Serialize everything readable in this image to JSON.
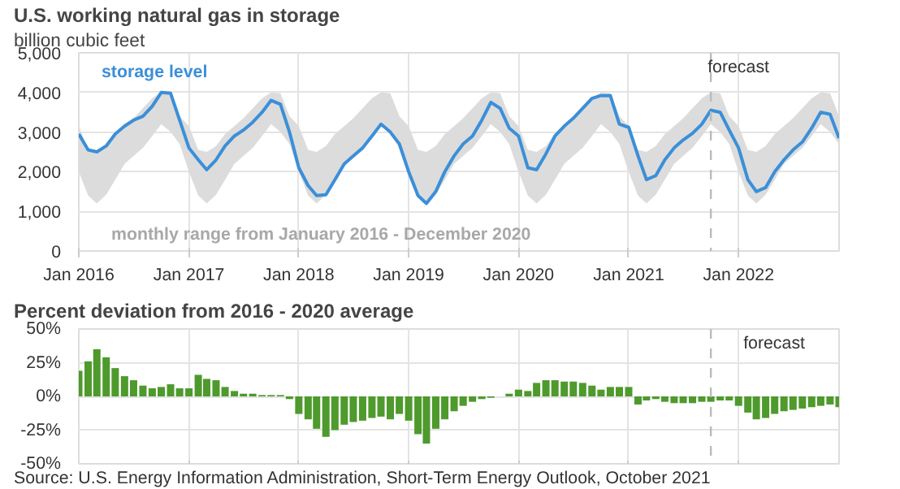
{
  "chart_data": [
    {
      "type": "line",
      "title": "U.S. working natural gas in storage",
      "subtitle": "billion cubic feet",
      "x": [
        "2016-01",
        "2016-02",
        "2016-03",
        "2016-04",
        "2016-05",
        "2016-06",
        "2016-07",
        "2016-08",
        "2016-09",
        "2016-10",
        "2016-11",
        "2016-12",
        "2017-01",
        "2017-02",
        "2017-03",
        "2017-04",
        "2017-05",
        "2017-06",
        "2017-07",
        "2017-08",
        "2017-09",
        "2017-10",
        "2017-11",
        "2017-12",
        "2018-01",
        "2018-02",
        "2018-03",
        "2018-04",
        "2018-05",
        "2018-06",
        "2018-07",
        "2018-08",
        "2018-09",
        "2018-10",
        "2018-11",
        "2018-12",
        "2019-01",
        "2019-02",
        "2019-03",
        "2019-04",
        "2019-05",
        "2019-06",
        "2019-07",
        "2019-08",
        "2019-09",
        "2019-10",
        "2019-11",
        "2019-12",
        "2020-01",
        "2020-02",
        "2020-03",
        "2020-04",
        "2020-05",
        "2020-06",
        "2020-07",
        "2020-08",
        "2020-09",
        "2020-10",
        "2020-11",
        "2020-12",
        "2021-01",
        "2021-02",
        "2021-03",
        "2021-04",
        "2021-05",
        "2021-06",
        "2021-07",
        "2021-08",
        "2021-09",
        "2021-10",
        "2021-11",
        "2021-12",
        "2022-01",
        "2022-02",
        "2022-03",
        "2022-04",
        "2022-05",
        "2022-06",
        "2022-07",
        "2022-08",
        "2022-09",
        "2022-10",
        "2022-11",
        "2022-12"
      ],
      "series": [
        {
          "name": "storage level",
          "color": "#3b8fd8",
          "values": [
            2950,
            2550,
            2500,
            2650,
            2950,
            3150,
            3300,
            3400,
            3650,
            4000,
            3980,
            3300,
            2600,
            2300,
            2050,
            2300,
            2650,
            2900,
            3050,
            3250,
            3500,
            3800,
            3700,
            3000,
            2100,
            1650,
            1400,
            1420,
            1800,
            2200,
            2400,
            2600,
            2900,
            3200,
            3000,
            2700,
            2000,
            1400,
            1200,
            1500,
            2000,
            2400,
            2700,
            2900,
            3300,
            3750,
            3600,
            3100,
            2900,
            2100,
            2050,
            2450,
            2900,
            3150,
            3350,
            3600,
            3850,
            3920,
            3920,
            3200,
            3120,
            2400,
            1800,
            1900,
            2300,
            2600,
            2800,
            2970,
            3200,
            3550,
            3500,
            3050,
            2600,
            1800,
            1500,
            1600,
            2000,
            2300,
            2550,
            2750,
            3100,
            3500,
            3450,
            2850
          ],
          "lower": [
            2000,
            1400,
            1200,
            1420,
            1800,
            2200,
            2400,
            2600,
            2900,
            3200,
            3000,
            2700,
            2000,
            1400,
            1200,
            1420,
            1800,
            2200,
            2400,
            2600,
            2900,
            3200,
            3000,
            2700,
            2000,
            1400,
            1200,
            1420,
            1800,
            2200,
            2400,
            2600,
            2900,
            3200,
            3000,
            2700,
            2000,
            1400,
            1200,
            1420,
            1800,
            2200,
            2400,
            2600,
            2900,
            3200,
            3000,
            2700,
            2000,
            1400,
            1200,
            1420,
            1800,
            2200,
            2400,
            2600,
            2900,
            3200,
            3000,
            2700,
            2000,
            1400,
            1200,
            1420,
            1800,
            2200,
            2400,
            2600,
            2900,
            3200,
            3000,
            2700,
            2000,
            1400,
            1200,
            1420,
            1800,
            2200,
            2400,
            2600,
            2900,
            3200,
            3000,
            2700
          ],
          "upper": [
            3150,
            2550,
            2500,
            2650,
            2950,
            3150,
            3350,
            3600,
            3850,
            4000,
            3980,
            3400,
            3150,
            2550,
            2500,
            2650,
            2950,
            3150,
            3350,
            3600,
            3850,
            4000,
            3980,
            3400,
            3150,
            2550,
            2500,
            2650,
            2950,
            3150,
            3350,
            3600,
            3850,
            4000,
            3980,
            3400,
            3150,
            2550,
            2500,
            2650,
            2950,
            3150,
            3350,
            3600,
            3850,
            4000,
            3980,
            3400,
            3150,
            2550,
            2500,
            2650,
            2950,
            3150,
            3350,
            3600,
            3850,
            4000,
            3980,
            3400,
            3150,
            2550,
            2500,
            2650,
            2950,
            3150,
            3350,
            3600,
            3850,
            4000,
            3980,
            3400,
            3150,
            2550,
            2500,
            2650,
            2950,
            3150,
            3350,
            3600,
            3850,
            4000,
            3980,
            3400
          ]
        }
      ],
      "xlim": [
        "2016-01",
        "2022-12"
      ],
      "xticks": [
        {
          "value": "2016-01",
          "label": "Jan 2016"
        },
        {
          "value": "2017-01",
          "label": "Jan 2017"
        },
        {
          "value": "2018-01",
          "label": "Jan 2018"
        },
        {
          "value": "2019-01",
          "label": "Jan 2019"
        },
        {
          "value": "2020-01",
          "label": "Jan 2020"
        },
        {
          "value": "2021-01",
          "label": "Jan 2021"
        },
        {
          "value": "2022-01",
          "label": "Jan 2022"
        }
      ],
      "ylim": [
        0,
        5000
      ],
      "yticks": [
        0,
        {
          "value": 1000,
          "label": "1,000"
        },
        {
          "value": 2000,
          "label": "2,000"
        },
        {
          "value": 3000,
          "label": "3,000"
        },
        {
          "value": 4000,
          "label": "4,000"
        },
        {
          "value": 5000,
          "label": "5,000"
        }
      ],
      "grid": true,
      "ref_lines": [
        {
          "axis": "x",
          "value": "2021-10",
          "label": "forecast",
          "color": "#bbbbbb",
          "line_style": "dashed"
        }
      ],
      "annotations": [
        "monthly range from January 2016 - December 2020"
      ]
    },
    {
      "type": "bar",
      "title": "Percent deviation from 2016 - 2020 average",
      "x": [
        "2016-01",
        "2016-02",
        "2016-03",
        "2016-04",
        "2016-05",
        "2016-06",
        "2016-07",
        "2016-08",
        "2016-09",
        "2016-10",
        "2016-11",
        "2016-12",
        "2017-01",
        "2017-02",
        "2017-03",
        "2017-04",
        "2017-05",
        "2017-06",
        "2017-07",
        "2017-08",
        "2017-09",
        "2017-10",
        "2017-11",
        "2017-12",
        "2018-01",
        "2018-02",
        "2018-03",
        "2018-04",
        "2018-05",
        "2018-06",
        "2018-07",
        "2018-08",
        "2018-09",
        "2018-10",
        "2018-11",
        "2018-12",
        "2019-01",
        "2019-02",
        "2019-03",
        "2019-04",
        "2019-05",
        "2019-06",
        "2019-07",
        "2019-08",
        "2019-09",
        "2019-10",
        "2019-11",
        "2019-12",
        "2020-01",
        "2020-02",
        "2020-03",
        "2020-04",
        "2020-05",
        "2020-06",
        "2020-07",
        "2020-08",
        "2020-09",
        "2020-10",
        "2020-11",
        "2020-12",
        "2021-01",
        "2021-02",
        "2021-03",
        "2021-04",
        "2021-05",
        "2021-06",
        "2021-07",
        "2021-08",
        "2021-09",
        "2021-10",
        "2021-11",
        "2021-12",
        "2022-01",
        "2022-02",
        "2022-03",
        "2022-04",
        "2022-05",
        "2022-06",
        "2022-07",
        "2022-08",
        "2022-09",
        "2022-10",
        "2022-11",
        "2022-12"
      ],
      "series": [
        {
          "color": "#4e9a2c",
          "values": [
            19,
            26,
            35,
            29,
            21,
            15,
            12,
            8,
            6,
            7,
            9,
            6,
            6,
            16,
            13,
            12,
            7,
            4,
            2,
            2,
            1,
            1,
            1,
            -2,
            -13,
            -17,
            -24,
            -30,
            -25,
            -21,
            -19,
            -18,
            -16,
            -15,
            -17,
            -13,
            -18,
            -28,
            -35,
            -24,
            -17,
            -11,
            -7,
            -4,
            -2,
            -1,
            0,
            2,
            5,
            4,
            10,
            12,
            12,
            11,
            11,
            10,
            8,
            5,
            7,
            7,
            7,
            -6,
            -3,
            -2,
            -4,
            -5,
            -5,
            -5,
            -4,
            -4,
            -3,
            -3,
            -7,
            -12,
            -17,
            -16,
            -13,
            -11,
            -10,
            -9,
            -8,
            -7,
            -6,
            -8
          ]
        }
      ],
      "xlim": [
        "2016-01",
        "2022-12"
      ],
      "xticks": [
        {
          "value": "2017-01",
          "label": null
        },
        {
          "value": "2018-01",
          "label": null
        },
        {
          "value": "2019-01",
          "label": null
        },
        {
          "value": "2020-01",
          "label": null
        },
        {
          "value": "2021-01",
          "label": null
        },
        {
          "value": "2022-01",
          "label": null
        }
      ],
      "ylim": [
        -50,
        50
      ],
      "yticks": [
        {
          "value": -50,
          "label": "-50%"
        },
        {
          "value": -25,
          "label": "-25%"
        },
        {
          "value": 0,
          "label": "0%"
        },
        {
          "value": 25,
          "label": "25%"
        },
        {
          "value": 50,
          "label": "50%"
        }
      ],
      "grid": true,
      "tick_labels": "y",
      "ref_lines": [
        {
          "axis": "x",
          "value": "2021-10",
          "label": "forecast",
          "color": "#bbbbbb",
          "line_style": "dashed"
        }
      ],
      "annotations": [
        "Source: U.S. Energy Information Administration, Short-Term Energy Outlook, October 2021"
      ]
    }
  ]
}
